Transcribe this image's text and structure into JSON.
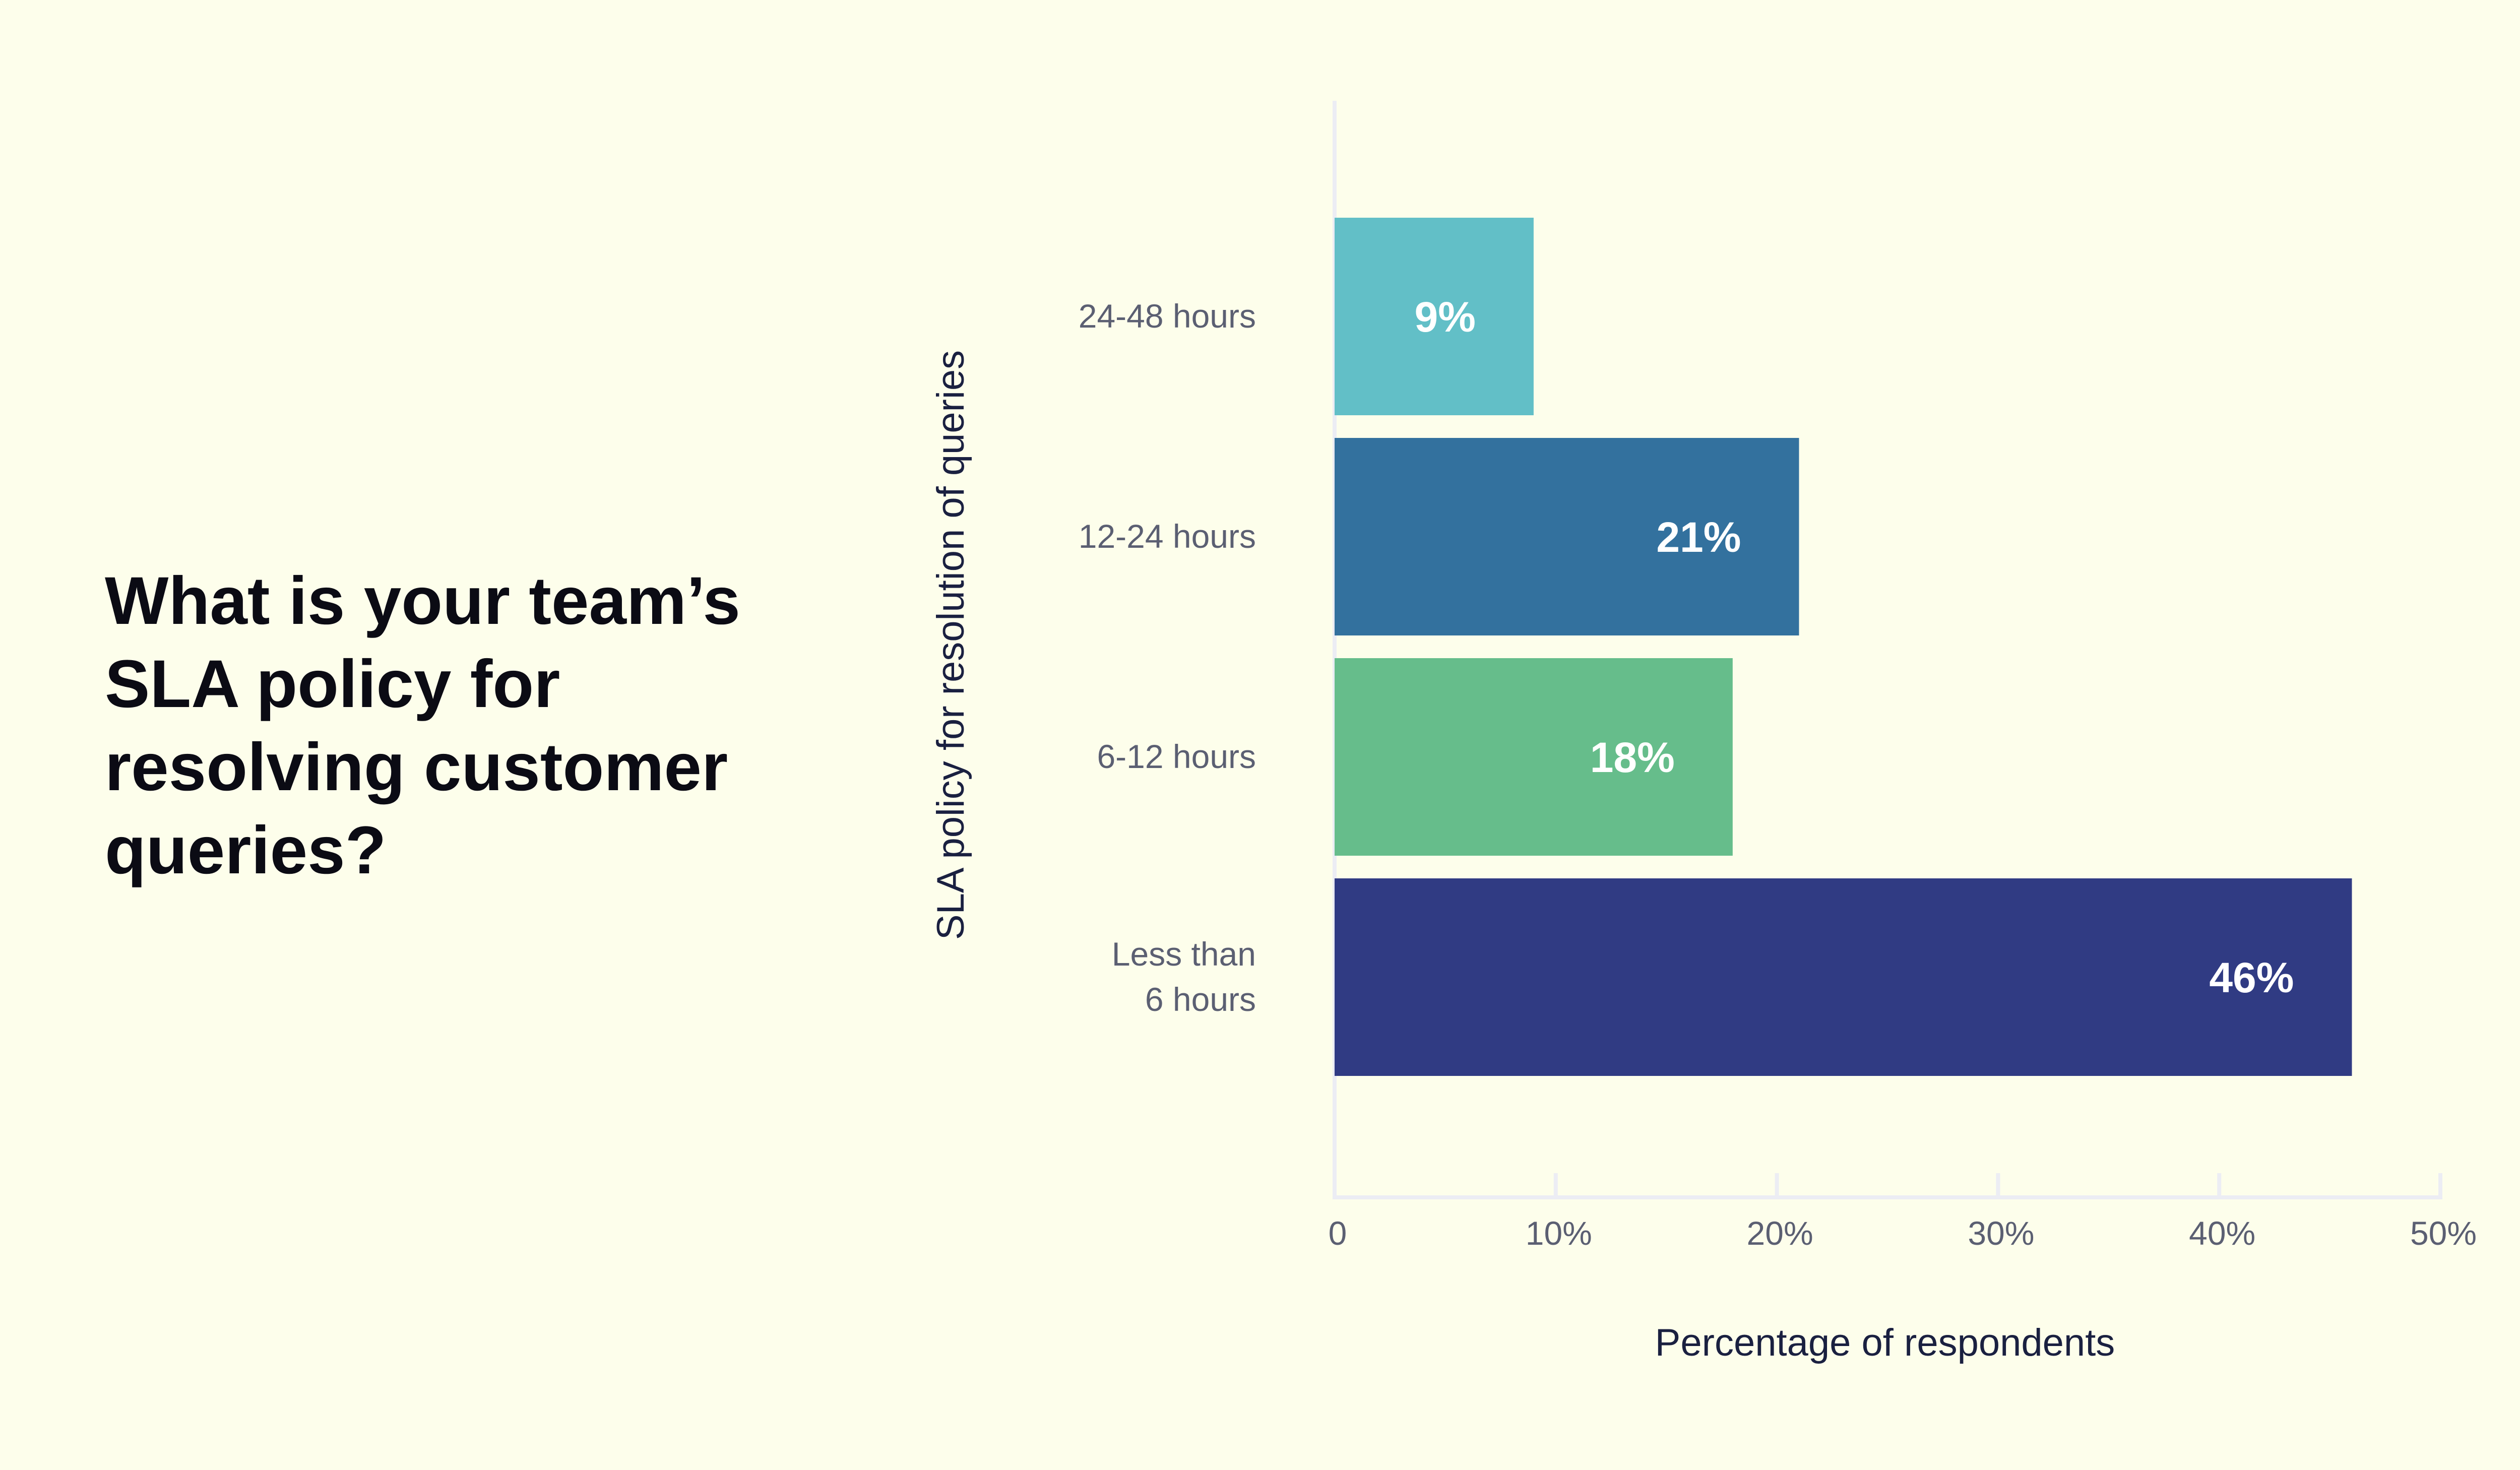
{
  "question": "What is your team’s SLA policy for resolving customer queries?",
  "colors": {
    "background": "#fdfeeb",
    "axis": "#ecedf4"
  },
  "chart_data": {
    "type": "bar",
    "orientation": "horizontal",
    "categories": [
      [
        "24-48 hours"
      ],
      [
        "12-24 hours"
      ],
      [
        "6-12 hours"
      ],
      [
        "Less than",
        "6 hours"
      ]
    ],
    "values": [
      9,
      21,
      18,
      46
    ],
    "value_labels": [
      "9%",
      "21%",
      "18%",
      "46%"
    ],
    "bar_colors": [
      "#62bfc7",
      "#33719e",
      "#66bd8b",
      "#303b83"
    ],
    "xlabel": "Percentage of respondents",
    "ylabel": "SLA policy for resolution of queries",
    "xlim": [
      0,
      50
    ],
    "xticks": [
      0,
      10,
      20,
      30,
      40,
      50
    ],
    "xtick_labels": [
      "0",
      "10%",
      "20%",
      "30%",
      "40%",
      "50%"
    ],
    "grid": false,
    "legend": "none"
  }
}
